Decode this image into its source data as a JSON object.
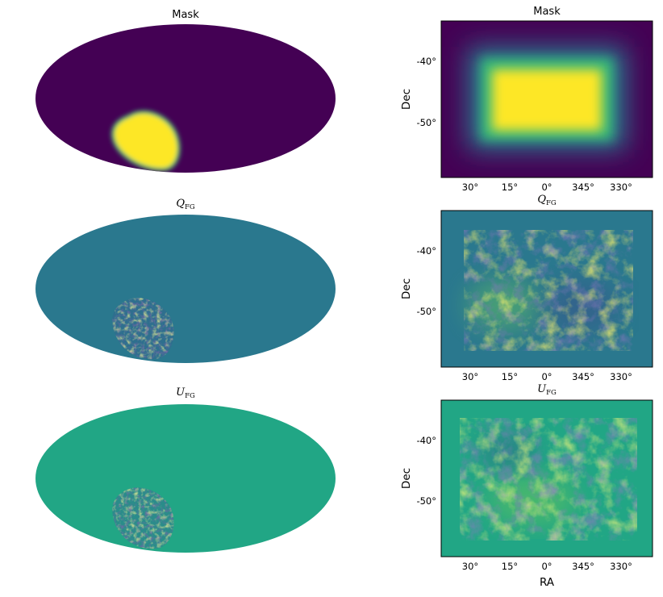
{
  "colors": {
    "viridis_dark": "#440154",
    "viridis_yellow": "#fde725",
    "viridis_green": "#22a884",
    "q_background": "#2a788e",
    "u_background": "#21a685"
  },
  "chart_data": [
    {
      "type": "heatmap",
      "projection": "mollweide",
      "title": "Mask",
      "panel": "full-sky mask",
      "value_range": [
        0,
        1
      ],
      "colormap": "viridis",
      "features": [
        {
          "kind": "apodized patch",
          "value": 1,
          "location": "lower-left (southern sky)"
        }
      ]
    },
    {
      "type": "heatmap",
      "projection": "gnomonic",
      "title": "Mask",
      "xlabel": "",
      "ylabel": "Dec",
      "xticks": [
        "30°",
        "15°",
        "0°",
        "345°",
        "330°"
      ],
      "yticks": [
        "-40°",
        "-50°"
      ],
      "colormap": "viridis",
      "value_range": [
        0,
        1
      ],
      "features": [
        {
          "kind": "rectangle with apodized edge",
          "value": 1,
          "ra_range": [
            "25°",
            "335°"
          ],
          "dec_range": [
            "-41°",
            "-51°"
          ]
        }
      ]
    },
    {
      "type": "heatmap",
      "projection": "mollweide",
      "title": "Q_FG",
      "title_main": "Q",
      "title_sub": "FG",
      "colormap": "viridis",
      "background_value": "mid",
      "features": [
        {
          "kind": "noisy foreground patch",
          "location": "lower-left (southern sky)"
        }
      ]
    },
    {
      "type": "heatmap",
      "projection": "gnomonic",
      "title": "Q_FG",
      "title_main": "Q",
      "title_sub": "FG",
      "xlabel": "",
      "ylabel": "Dec",
      "xticks": [
        "30°",
        "15°",
        "0°",
        "345°",
        "330°"
      ],
      "yticks": [
        "-40°",
        "-50°"
      ],
      "colormap": "viridis",
      "features": [
        {
          "kind": "bright region",
          "ra": "15°",
          "dec": "-49°"
        },
        {
          "kind": "dark region",
          "ra": "345°",
          "dec": "-49°"
        }
      ]
    },
    {
      "type": "heatmap",
      "projection": "mollweide",
      "title": "U_FG",
      "title_main": "U",
      "title_sub": "FG",
      "colormap": "viridis",
      "background_value": "mid",
      "features": [
        {
          "kind": "noisy foreground patch",
          "location": "lower-left (southern sky)"
        }
      ]
    },
    {
      "type": "heatmap",
      "projection": "gnomonic",
      "title": "U_FG",
      "title_main": "U",
      "title_sub": "FG",
      "xlabel": "RA",
      "ylabel": "Dec",
      "xticks": [
        "30°",
        "15°",
        "0°",
        "345°",
        "330°"
      ],
      "yticks": [
        "-40°",
        "-50°"
      ],
      "colormap": "viridis",
      "features": [
        {
          "kind": "bright region",
          "ra": "5°",
          "dec": "-51°"
        },
        {
          "kind": "dark region",
          "ra": "15°",
          "dec": "-43°"
        }
      ]
    }
  ]
}
